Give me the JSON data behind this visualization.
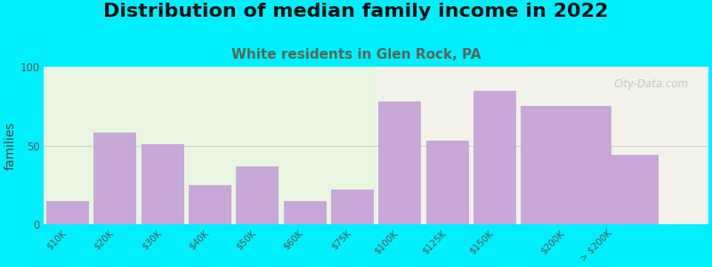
{
  "title": "Distribution of median family income in 2022",
  "subtitle": "White residents in Glen Rock, PA",
  "ylabel": "families",
  "categories": [
    "$10K",
    "$20K",
    "$30K",
    "$40K",
    "$50K",
    "$60K",
    "$75K",
    "$100K",
    "$125K",
    "$150K",
    "$200K",
    "> $200K"
  ],
  "values": [
    15,
    58,
    51,
    25,
    37,
    15,
    22,
    78,
    53,
    85,
    75,
    44
  ],
  "bar_left_edges": [
    0,
    1,
    2,
    3,
    4,
    5,
    6,
    7,
    8,
    9,
    10,
    11
  ],
  "bar_widths": [
    1,
    1,
    1,
    1,
    1,
    1,
    1,
    1,
    1,
    1,
    2,
    2
  ],
  "bar_color": "#c8a8d8",
  "background_outer": "#00efff",
  "background_plot_left": "#e8f5e0",
  "background_plot_right": "#f2f2ea",
  "ylim": [
    0,
    100
  ],
  "yticks": [
    0,
    50,
    100
  ],
  "title_fontsize": 16,
  "subtitle_fontsize": 11,
  "ylabel_fontsize": 10,
  "watermark": "City-Data.com",
  "split_index": 7
}
